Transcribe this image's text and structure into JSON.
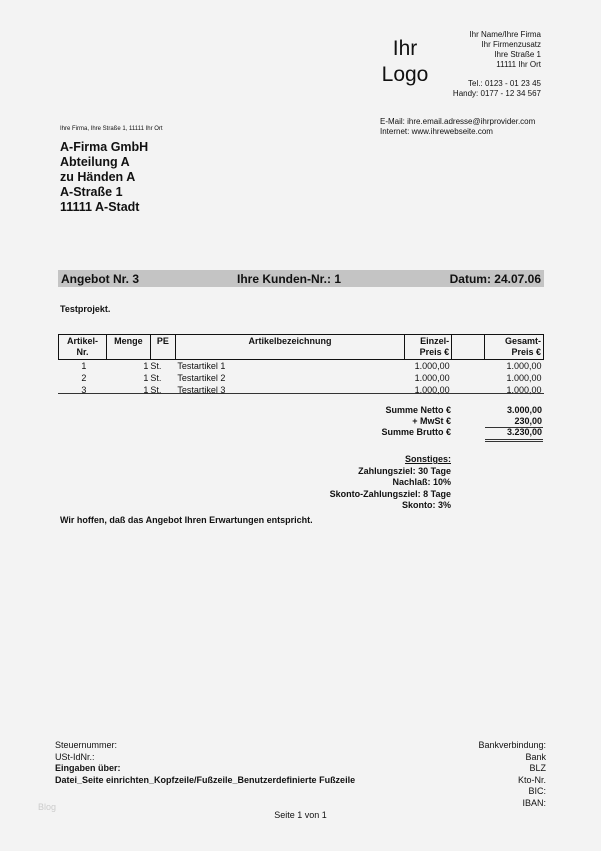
{
  "header": {
    "logo": [
      "Ihr",
      "Logo"
    ],
    "company_lines": [
      "Ihr Name/Ihre Firma",
      "Ihr Firmenzusatz",
      "Ihre Straße 1",
      "11111 Ihr Ort"
    ],
    "tel": "Tel.: 0123 - 01 23 45",
    "handy": "Handy: 0177 - 12 34 567",
    "email": "E-Mail: ihre.email.adresse@ihrprovider.com",
    "internet": "Internet: www.ihrewebseite.com"
  },
  "sender_line": "Ihre Firma, Ihre Straße 1, 11111 Ihr Ort",
  "recipient": [
    "A-Firma GmbH",
    "Abteilung A",
    "zu Händen A",
    "A-Straße 1",
    "11111 A-Stadt"
  ],
  "title_bar": {
    "offer": "Angebot Nr. 3",
    "customer": "Ihre Kunden-Nr.: 1",
    "date": "Datum: 24.07.06"
  },
  "project": "Testprojekt.",
  "table": {
    "headers": [
      "Artikel-\nNr.",
      "Menge",
      "PE",
      "Artikelbezeichnung",
      "Einzel-\nPreis €",
      "",
      "Gesamt-\nPreis €"
    ],
    "rows": [
      [
        "1",
        "1",
        "St.",
        "Testartikel 1",
        "1.000,00",
        "",
        "1.000,00"
      ],
      [
        "2",
        "1",
        "St.",
        "Testartikel 2",
        "1.000,00",
        "",
        "1.000,00"
      ],
      [
        "3",
        "1",
        "St.",
        "Testartikel 3",
        "1.000,00",
        "",
        "1.000,00"
      ]
    ]
  },
  "totals": {
    "netto_label": "Summe Netto €",
    "netto": "3.000,00",
    "mwst_label": "+ MwSt €",
    "mwst": "230,00",
    "brutto_label": "Summe Brutto €",
    "brutto": "3.230,00"
  },
  "other": {
    "title": "Sonstiges:",
    "lines": [
      "Zahlungsziel: 30 Tage",
      "Nachlaß: 10%",
      "Skonto-Zahlungsziel: 8 Tage",
      "Skonto: 3%"
    ]
  },
  "closing": "Wir hoffen, daß das Angebot Ihren Erwartungen entspricht.",
  "footer": {
    "left": [
      "Steuernummer:",
      "USt-IdNr.:",
      "Eingaben über:",
      "Datei_Seite einrichten_Kopfzeile/Fußzeile_Benutzerdefinierte Fußzeile"
    ],
    "right": [
      "Bankverbindung:",
      "Bank",
      "BLZ",
      "Kto-Nr.",
      "BIC:",
      "IBAN:"
    ],
    "page": "Seite 1 von 1",
    "watermark": "Blog"
  }
}
